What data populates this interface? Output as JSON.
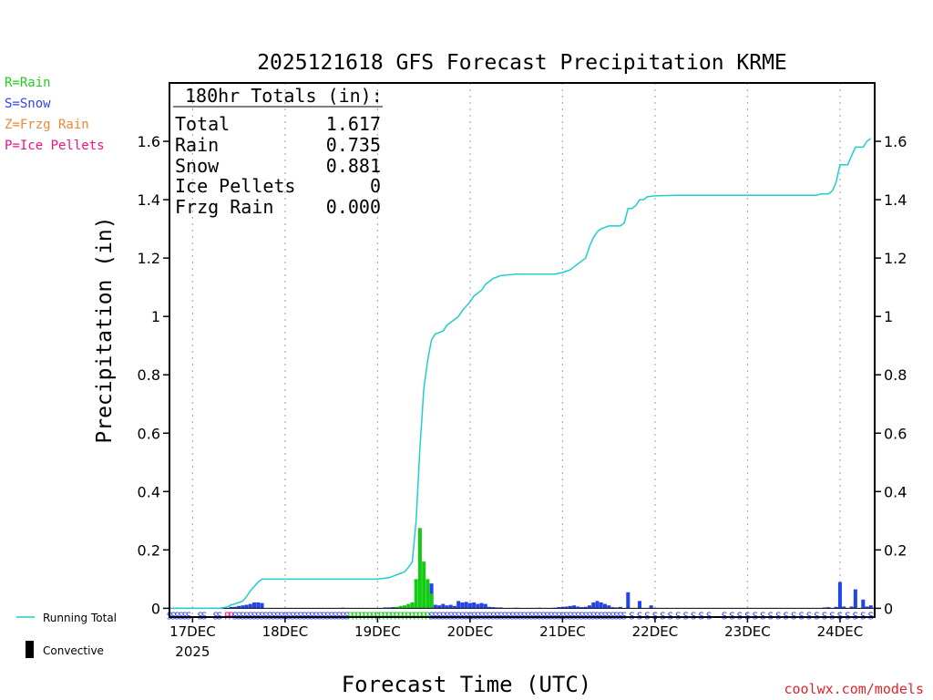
{
  "chart_data": {
    "type": "bar+line",
    "title": "2025121618 GFS Forecast Precipitation KRME",
    "ylabel": "Precipitation (in)",
    "xlabel": "Forecast Time (UTC)",
    "credit": "coolwx.com/models",
    "ylim": [
      -0.03,
      1.8
    ],
    "xlim_hours": [
      0,
      183
    ],
    "yticks": [
      0,
      0.2,
      0.4,
      0.6,
      0.8,
      1,
      1.2,
      1.4,
      1.6
    ],
    "ytick_labels": [
      "0",
      "0.2",
      "0.4",
      "0.6",
      "0.8",
      "1",
      "1.2",
      "1.4",
      "1.6"
    ],
    "xticks": [
      {
        "hour": 6,
        "label": "17DEC",
        "sublabel": "2025"
      },
      {
        "hour": 30,
        "label": "18DEC"
      },
      {
        "hour": 54,
        "label": "19DEC"
      },
      {
        "hour": 78,
        "label": "20DEC"
      },
      {
        "hour": 102,
        "label": "21DEC"
      },
      {
        "hour": 126,
        "label": "22DEC"
      },
      {
        "hour": 150,
        "label": "23DEC"
      },
      {
        "hour": 174,
        "label": "24DEC"
      }
    ],
    "legend_types": [
      {
        "text": "R=Rain",
        "color": "#22cc22"
      },
      {
        "text": "S=Snow",
        "color": "#3344ee"
      },
      {
        "text": "Z=Frzg Rain",
        "color": "#ee8833"
      },
      {
        "text": "P=Ice Pellets",
        "color": "#ee1188"
      }
    ],
    "legend_series": [
      {
        "text": "Running Total",
        "color": "#22cccc"
      },
      {
        "text": "Convective",
        "color": "#000000"
      }
    ],
    "totals": {
      "heading": "180hr Totals (in):",
      "rows": [
        {
          "label": "Total",
          "value": "1.617"
        },
        {
          "label": "Rain",
          "value": "0.735"
        },
        {
          "label": "Snow",
          "value": "0.881"
        },
        {
          "label": "Ice Pellets",
          "value": "0"
        },
        {
          "label": "Frzg Rain",
          "value": "0.000"
        }
      ]
    },
    "series": [
      {
        "name": "Running Total",
        "color": "#22cccc",
        "hours": [
          0,
          13,
          15,
          16,
          17,
          18,
          19,
          20,
          21,
          23,
          24,
          25,
          30,
          40,
          50,
          54,
          57,
          58,
          60,
          61,
          62,
          63,
          64,
          65,
          66,
          67,
          68,
          69,
          70,
          71,
          72,
          74,
          75,
          76,
          78,
          79,
          81,
          82,
          84,
          86,
          90,
          96,
          100,
          102,
          103,
          104,
          105,
          106,
          107,
          108,
          109,
          110,
          111,
          112,
          114,
          117,
          118,
          119,
          120,
          121,
          122,
          123,
          124,
          126,
          128,
          132,
          145,
          158,
          168,
          169,
          171,
          172,
          173,
          174,
          175,
          176,
          177,
          178,
          179,
          180,
          181,
          182
        ],
        "values": [
          0.0,
          0.0,
          0.005,
          0.012,
          0.015,
          0.02,
          0.025,
          0.04,
          0.06,
          0.09,
          0.1,
          0.1,
          0.1,
          0.1,
          0.1,
          0.1,
          0.105,
          0.11,
          0.12,
          0.125,
          0.14,
          0.16,
          0.3,
          0.55,
          0.75,
          0.85,
          0.92,
          0.94,
          0.945,
          0.95,
          0.97,
          0.99,
          1.0,
          1.02,
          1.05,
          1.07,
          1.09,
          1.11,
          1.13,
          1.14,
          1.145,
          1.145,
          1.145,
          1.15,
          1.155,
          1.16,
          1.17,
          1.18,
          1.19,
          1.2,
          1.24,
          1.27,
          1.29,
          1.3,
          1.31,
          1.31,
          1.32,
          1.37,
          1.37,
          1.38,
          1.4,
          1.4,
          1.41,
          1.413,
          1.414,
          1.415,
          1.415,
          1.415,
          1.415,
          1.42,
          1.42,
          1.43,
          1.46,
          1.52,
          1.52,
          1.52,
          1.55,
          1.58,
          1.58,
          1.58,
          1.6,
          1.61
        ]
      },
      {
        "name": "Rain",
        "color": "#11cc11",
        "hours": [
          59,
          60,
          61,
          62,
          63,
          64,
          65,
          66,
          67,
          68
        ],
        "values": [
          0.005,
          0.008,
          0.01,
          0.015,
          0.02,
          0.1,
          0.275,
          0.16,
          0.1,
          0.05
        ]
      },
      {
        "name": "Snow",
        "color": "#2244ee",
        "hours": [
          16,
          17,
          18,
          19,
          20,
          21,
          22,
          23,
          24,
          45,
          56,
          57,
          58,
          68,
          69,
          70,
          71,
          72,
          73,
          74,
          75,
          76,
          77,
          78,
          79,
          80,
          81,
          82,
          83,
          84,
          85,
          86,
          90,
          96,
          100,
          101,
          102,
          103,
          104,
          105,
          106,
          107,
          108,
          109,
          110,
          111,
          112,
          113,
          114,
          115,
          116,
          117,
          119,
          122,
          125,
          170,
          171,
          173,
          174,
          175,
          177,
          178,
          180,
          181,
          182
        ],
        "values": [
          0.005,
          0.005,
          0.008,
          0.01,
          0.012,
          0.015,
          0.02,
          0.02,
          0.018,
          0.002,
          0.003,
          0.003,
          0.004,
          0.085,
          0.012,
          0.01,
          0.015,
          0.01,
          0.012,
          0.008,
          0.025,
          0.02,
          0.022,
          0.018,
          0.02,
          0.015,
          0.018,
          0.015,
          0.005,
          0.004,
          0.003,
          0.003,
          0.002,
          0.002,
          0.002,
          0.004,
          0.005,
          0.006,
          0.008,
          0.01,
          0.006,
          0.004,
          0.005,
          0.01,
          0.02,
          0.025,
          0.02,
          0.015,
          0.01,
          0.004,
          0.003,
          0.005,
          0.055,
          0.025,
          0.01,
          0.003,
          0.004,
          0.005,
          0.09,
          0.006,
          0.006,
          0.065,
          0.03,
          0.006,
          0.01
        ]
      }
    ],
    "ptype_strip": {
      "hours": [
        0,
        1,
        2,
        3,
        4,
        5,
        8,
        9,
        12,
        13,
        15,
        16,
        17,
        18,
        19,
        20,
        21,
        22,
        23,
        24,
        25,
        26,
        27,
        28,
        29,
        30,
        31,
        32,
        33,
        34,
        35,
        36,
        37,
        38,
        39,
        40,
        41,
        42,
        43,
        44,
        45,
        46,
        47,
        48,
        49,
        50,
        51,
        52,
        53,
        54,
        55,
        56,
        57,
        58,
        59,
        60,
        61,
        62,
        63,
        64,
        65,
        66,
        67,
        68,
        69,
        70,
        71,
        72,
        73,
        74,
        75,
        76,
        77,
        78,
        79,
        80,
        81,
        82,
        83,
        84,
        85,
        86,
        87,
        88,
        89,
        90,
        91,
        92,
        93,
        94,
        95,
        96,
        97,
        98,
        99,
        100,
        101,
        102,
        103,
        104,
        105,
        106,
        107,
        108,
        109,
        110,
        111,
        112,
        113,
        114,
        115,
        116,
        117,
        118,
        120,
        122,
        124,
        126,
        128,
        130,
        132,
        134,
        136,
        138,
        140,
        144,
        146,
        148,
        150,
        152,
        154,
        156,
        158,
        160,
        162,
        164,
        166,
        168,
        170,
        172,
        174,
        176,
        178,
        180,
        182
      ],
      "codes": "SSSSSSSSSSPPSSSSSSSSSSSSSSSSSSSSSSSSSSSSSSRRRRRRRRRRRRRRRRRRRRRSSSSSSSSSSSSSSSSSSSSSSSSSSSSSSSSSSSSSSSSSSSSSSSSSSSSSSSSSSSSSSSSSSSSSSSSSSSSSSSSSSSSS"
    }
  }
}
